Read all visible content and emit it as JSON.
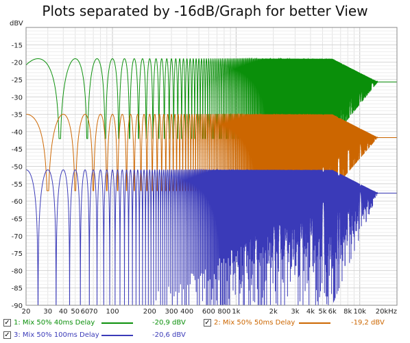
{
  "chart_data": {
    "type": "line",
    "title": "Plots separated by -16dB/Graph for better View",
    "ylabel": "dBV",
    "xlabel": "",
    "x_scale": "log",
    "xlim": [
      20,
      20000
    ],
    "ylim": [
      -90,
      -10
    ],
    "grid": true,
    "y_ticks": [
      -15,
      -20,
      -25,
      -30,
      -35,
      -40,
      -45,
      -50,
      -55,
      -60,
      -65,
      -70,
      -75,
      -80,
      -85,
      -90
    ],
    "x_ticks": [
      {
        "value": 20,
        "label": "20"
      },
      {
        "value": 30,
        "label": "30"
      },
      {
        "value": 40,
        "label": "40"
      },
      {
        "value": 50,
        "label": "50"
      },
      {
        "value": 60,
        "label": "60"
      },
      {
        "value": 70,
        "label": "70"
      },
      {
        "value": 100,
        "label": "100"
      },
      {
        "value": 200,
        "label": "200"
      },
      {
        "value": 300,
        "label": "300"
      },
      {
        "value": 400,
        "label": "400"
      },
      {
        "value": 600,
        "label": "600"
      },
      {
        "value": 800,
        "label": "800"
      },
      {
        "value": 1000,
        "label": "1k"
      },
      {
        "value": 2000,
        "label": "2k"
      },
      {
        "value": 3000,
        "label": "3k"
      },
      {
        "value": 4000,
        "label": "4k"
      },
      {
        "value": 5000,
        "label": "5k"
      },
      {
        "value": 6000,
        "label": "6k"
      },
      {
        "value": 8000,
        "label": "8k"
      },
      {
        "value": 10000,
        "label": "10k"
      },
      {
        "value": 20000,
        "label": "20kHz"
      }
    ],
    "series": [
      {
        "name": "1: Mix 50% 40ms Delay",
        "color": "#0a8f0a",
        "delay_ms": 40,
        "peak_db": -19,
        "floor_db": -25.7,
        "notch_db": -42,
        "value_label": "-20,9 dBV"
      },
      {
        "name": "2: Mix 50% 50ms Delay",
        "color": "#cc6600",
        "delay_ms": 50,
        "peak_db": -35,
        "floor_db": -41.7,
        "notch_db": -57,
        "value_label": "-19,2 dBV"
      },
      {
        "name": "3: Mix 50% 100ms Delay",
        "color": "#3a3ab8",
        "delay_ms": 100,
        "peak_db": -51,
        "floor_db": -57.7,
        "notch_db": -90,
        "value_label": "-20,6 dBV"
      }
    ]
  },
  "legend": {
    "check_mark": "✓"
  }
}
